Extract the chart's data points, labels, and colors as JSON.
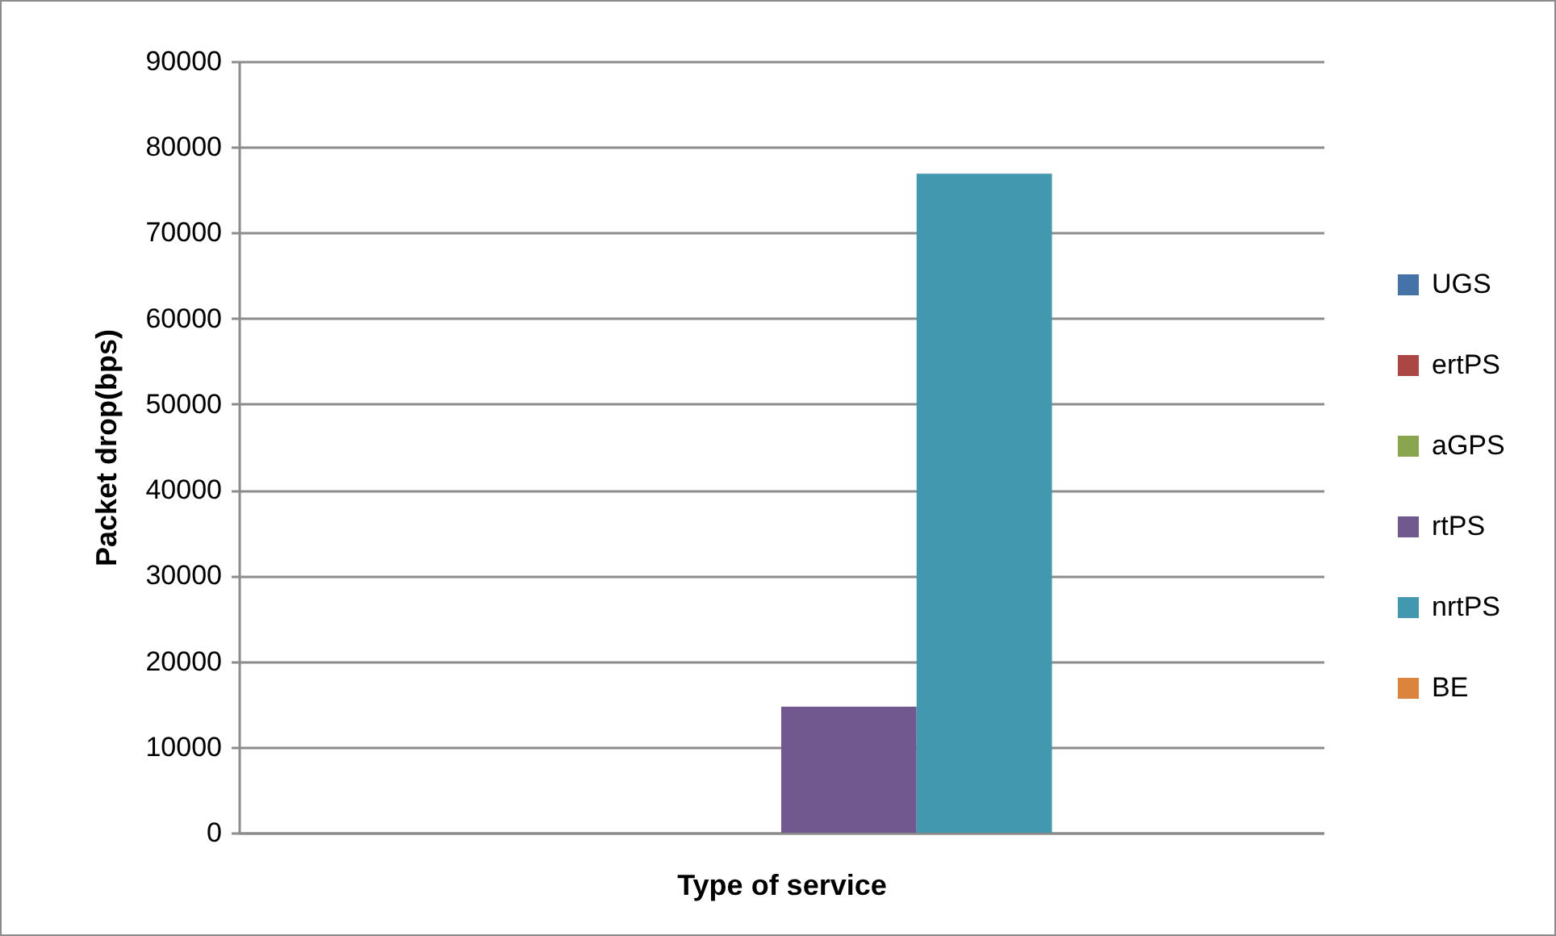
{
  "chart_data": {
    "type": "bar",
    "xlabel": "Type of service",
    "ylabel": "Packet drop(bps)",
    "categories": [
      null
    ],
    "series": [
      {
        "name": "UGS",
        "color": "#4572a7",
        "values": [
          0
        ]
      },
      {
        "name": "ertPS",
        "color": "#aa4643",
        "values": [
          0
        ]
      },
      {
        "name": "aGPS",
        "color": "#89a54e",
        "values": [
          0
        ]
      },
      {
        "name": "rtPS",
        "color": "#71588f",
        "values": [
          14700
        ]
      },
      {
        "name": "nrtPS",
        "color": "#4198af",
        "values": [
          76900
        ]
      },
      {
        "name": "BE",
        "color": "#db843d",
        "values": [
          0
        ]
      }
    ],
    "ylim": [
      0,
      90000
    ],
    "yticks": [
      0,
      10000,
      20000,
      30000,
      40000,
      50000,
      60000,
      70000,
      80000,
      90000
    ],
    "grid": "y",
    "legend": "right"
  }
}
